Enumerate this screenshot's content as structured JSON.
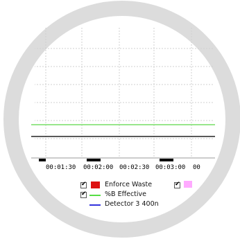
{
  "chart_data": {
    "type": "line",
    "x_tick_labels": [
      "00:01:30",
      "00:02:00",
      "00:02:30",
      "00:03:00",
      "00"
    ],
    "series": [
      {
        "name": "%B Effective",
        "color": "#55dd44"
      },
      {
        "name": "Detector 3 400n",
        "color": "#3333dd"
      },
      {
        "color": "#ee2288"
      },
      {
        "color": "#558866"
      }
    ],
    "legend": [
      {
        "label": "Enforce Waste",
        "checked": true,
        "swatch": "#dd1111",
        "kind": "box"
      },
      {
        "label": "%B Effective",
        "checked": true,
        "swatch": "#55dd44",
        "kind": "line"
      },
      {
        "label": "Detector 3 400n",
        "checked": false,
        "swatch": "#3333dd",
        "kind": "line"
      }
    ],
    "legend_col2": {
      "checked": true,
      "swatch": "#ffaaff"
    },
    "grid": true
  }
}
